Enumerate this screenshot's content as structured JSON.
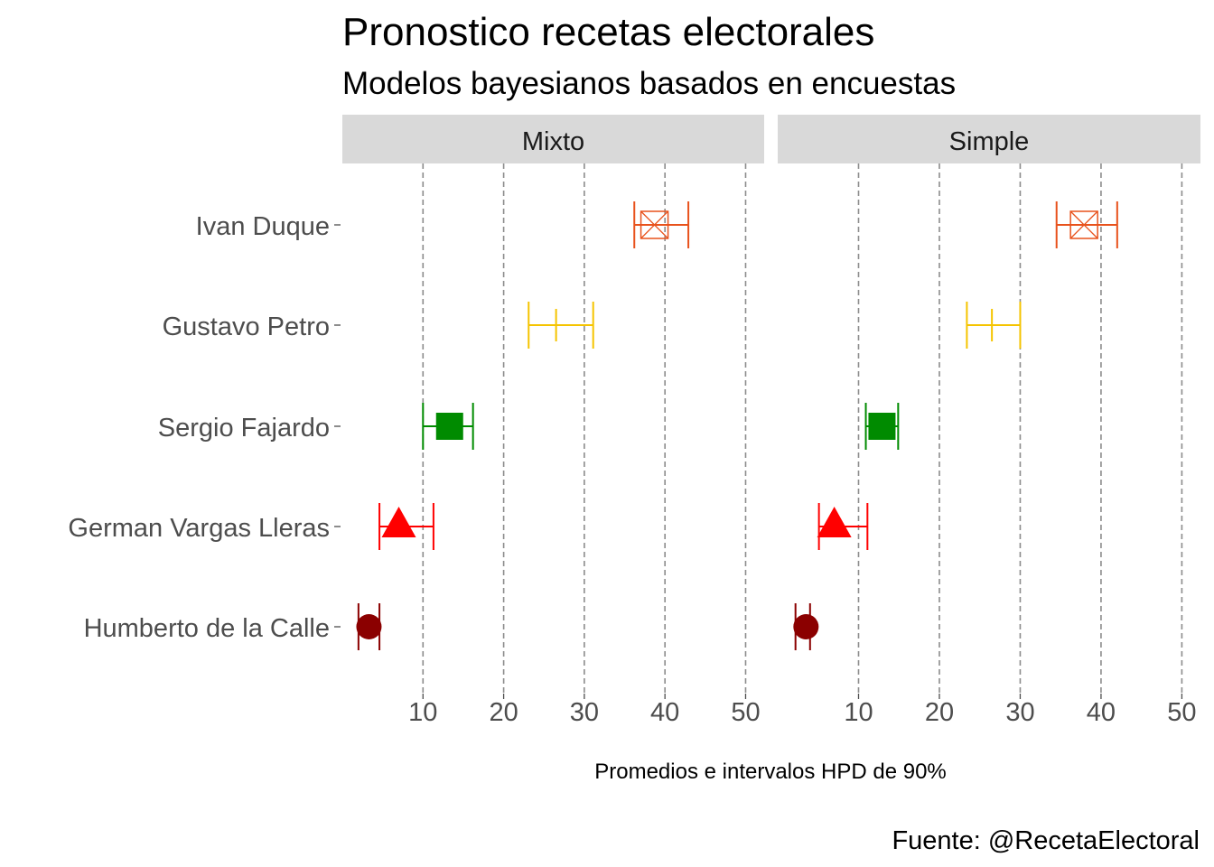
{
  "chart_data": {
    "type": "errorbar",
    "title": "Pronostico recetas electorales",
    "subtitle": "Modelos bayesianos basados en encuestas",
    "xlabel": "Promedios e intervalos HPD de 90%",
    "caption": "Fuente: @RecetaElectoral",
    "xlim": [
      0,
      52.3
    ],
    "xticks": [
      10,
      20,
      30,
      40,
      50
    ],
    "xtick_labels": [
      "10",
      "20",
      "30",
      "40",
      "50"
    ],
    "grid": "vertical dashed",
    "categories": [
      "Ivan Duque",
      "Gustavo Petro",
      "Sergio Fajardo",
      "German Vargas Lleras",
      "Humberto de la Calle"
    ],
    "styles": [
      {
        "color": "#e8521c",
        "shape": "square-x"
      },
      {
        "color": "#f5c400",
        "shape": "plus"
      },
      {
        "color": "#008b00",
        "shape": "square"
      },
      {
        "color": "#ff0000",
        "shape": "triangle"
      },
      {
        "color": "#8b0000",
        "shape": "circle"
      }
    ],
    "panels": [
      {
        "name": "Mixto",
        "series": [
          {
            "mean": 38.7,
            "lower": 36.2,
            "upper": 42.9
          },
          {
            "mean": 26.5,
            "lower": 23.1,
            "upper": 31.1
          },
          {
            "mean": 13.3,
            "lower": 10.0,
            "upper": 16.2
          },
          {
            "mean": 7.0,
            "lower": 4.6,
            "upper": 11.3
          },
          {
            "mean": 3.3,
            "lower": 2.0,
            "upper": 4.6
          }
        ]
      },
      {
        "name": "Simple",
        "series": [
          {
            "mean": 37.9,
            "lower": 34.5,
            "upper": 42.0
          },
          {
            "mean": 26.5,
            "lower": 23.4,
            "upper": 30.0
          },
          {
            "mean": 12.9,
            "lower": 10.9,
            "upper": 14.9
          },
          {
            "mean": 7.0,
            "lower": 5.1,
            "upper": 11.1
          },
          {
            "mean": 3.5,
            "lower": 2.2,
            "upper": 4.0
          }
        ]
      }
    ]
  }
}
